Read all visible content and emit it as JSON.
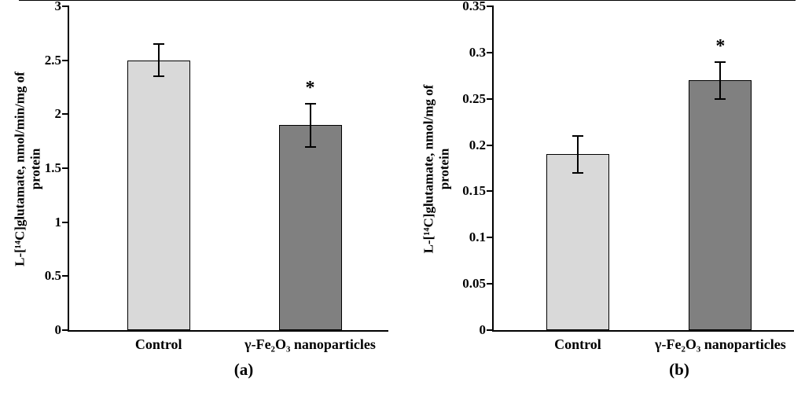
{
  "figure": {
    "captions": [
      "(a)",
      "(b)"
    ]
  },
  "chart_data": [
    {
      "type": "bar",
      "panel": "a",
      "title": "",
      "xlabel": "",
      "ylabel": "L-[¹⁴C]glutamate, nmol/min/mg of\nprotein",
      "categories": [
        "Control",
        "γ-Fe₂O₃ nanoparticles"
      ],
      "values": [
        2.5,
        1.9
      ],
      "errors": [
        0.15,
        0.2
      ],
      "significance": [
        "",
        "*"
      ],
      "ylim": [
        0,
        3
      ],
      "yticks": [
        0,
        0.5,
        1,
        1.5,
        2,
        2.5,
        3
      ],
      "ytick_labels": [
        "0",
        "0.5",
        "1",
        "1.5",
        "2",
        "2.5",
        "3"
      ],
      "bar_colors": [
        "#d9d9d9",
        "#808080"
      ],
      "grid": false,
      "legend": "none"
    },
    {
      "type": "bar",
      "panel": "b",
      "title": "",
      "xlabel": "",
      "ylabel": "L-[¹⁴C]glutamate, nmol/mg of\nprotein",
      "categories": [
        "Control",
        "γ-Fe₂O₃ nanoparticles"
      ],
      "values": [
        0.19,
        0.27
      ],
      "errors": [
        0.02,
        0.02
      ],
      "significance": [
        "",
        "*"
      ],
      "ylim": [
        0,
        0.35
      ],
      "yticks": [
        0,
        0.05,
        0.1,
        0.15,
        0.2,
        0.25,
        0.3,
        0.35
      ],
      "ytick_labels": [
        "0",
        "0.05",
        "0.1",
        "0.15",
        "0.2",
        "0.25",
        "0.3",
        "0.35"
      ],
      "bar_colors": [
        "#d9d9d9",
        "#808080"
      ],
      "grid": false,
      "legend": "none"
    }
  ]
}
